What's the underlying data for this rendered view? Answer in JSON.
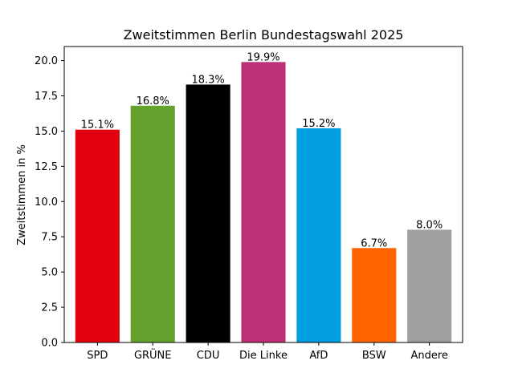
{
  "chart_data": {
    "type": "bar",
    "title": "Zweitstimmen Berlin Bundestagswahl 2025",
    "xlabel": "",
    "ylabel": "Zweitstimmen in %",
    "categories": [
      "SPD",
      "GRÜNE",
      "CDU",
      "Die Linke",
      "AfD",
      "BSW",
      "Andere"
    ],
    "values": [
      15.1,
      16.8,
      18.3,
      19.9,
      15.2,
      6.7,
      8.0
    ],
    "value_labels": [
      "15.1%",
      "16.8%",
      "18.3%",
      "19.9%",
      "15.2%",
      "6.7%",
      "8.0%"
    ],
    "colors": [
      "#e3000f",
      "#64a12d",
      "#000000",
      "#be3075",
      "#009ee0",
      "#ff6400",
      "#a0a0a0"
    ],
    "ylim": [
      0,
      21.0
    ],
    "yticks": [
      0.0,
      2.5,
      5.0,
      7.5,
      10.0,
      12.5,
      15.0,
      17.5,
      20.0
    ],
    "ytick_labels": [
      "0.0",
      "2.5",
      "5.0",
      "7.5",
      "10.0",
      "12.5",
      "15.0",
      "17.5",
      "20.0"
    ],
    "grid": false,
    "legend": "none"
  }
}
